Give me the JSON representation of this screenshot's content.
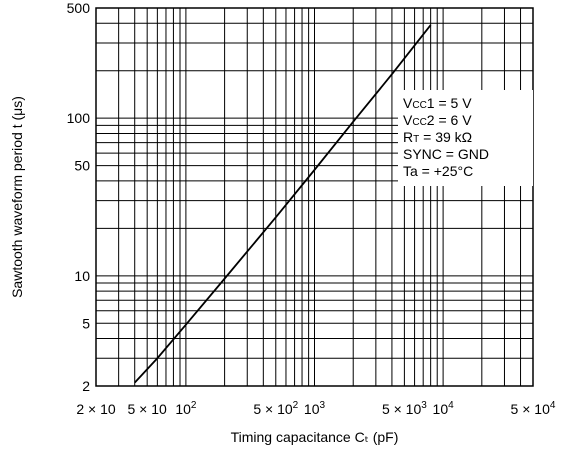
{
  "chart_data": {
    "type": "line",
    "x_scale": "log",
    "y_scale": "log",
    "xlim": [
      20,
      50000
    ],
    "ylim": [
      2,
      500
    ],
    "grid": true,
    "xlabel": "Timing capacitance Cₜ (pF)",
    "ylabel": "Sawtooth waveform period t (μs)",
    "x_ticks": [
      {
        "value": 20,
        "base": "2 × 10",
        "exp": ""
      },
      {
        "value": 50,
        "base": "5 × 10",
        "exp": ""
      },
      {
        "value": 100,
        "base": "10",
        "exp": "2"
      },
      {
        "value": 500,
        "base": "5 × 10",
        "exp": "2"
      },
      {
        "value": 1000,
        "base": "10",
        "exp": "3"
      },
      {
        "value": 5000,
        "base": "5 × 10",
        "exp": "3"
      },
      {
        "value": 10000,
        "base": "10",
        "exp": "4"
      },
      {
        "value": 50000,
        "base": "5 × 10",
        "exp": "4"
      }
    ],
    "y_ticks": [
      {
        "value": 2,
        "label": "2"
      },
      {
        "value": 5,
        "label": "5"
      },
      {
        "value": 10,
        "label": "10"
      },
      {
        "value": 50,
        "label": "50"
      },
      {
        "value": 100,
        "label": "100"
      },
      {
        "value": 500,
        "label": "500"
      }
    ],
    "conditions": [
      {
        "main": "V",
        "sub": "CC",
        "rest": "1 = 5 V"
      },
      {
        "main": "V",
        "sub": "CC",
        "rest": "2 = 6 V"
      },
      {
        "main": "R",
        "sub": "T",
        "rest": " = 39 kΩ"
      },
      {
        "main": "SYNC = GND",
        "sub": "",
        "rest": ""
      },
      {
        "main": "Ta = +25°C",
        "sub": "",
        "rest": ""
      }
    ],
    "series": [
      {
        "x": [
          40,
          60,
          100,
          200,
          500,
          1000,
          2000,
          4000,
          8000
        ],
        "y": [
          2.1,
          3.0,
          4.9,
          9.6,
          23.5,
          47,
          95,
          190,
          390
        ]
      }
    ]
  }
}
